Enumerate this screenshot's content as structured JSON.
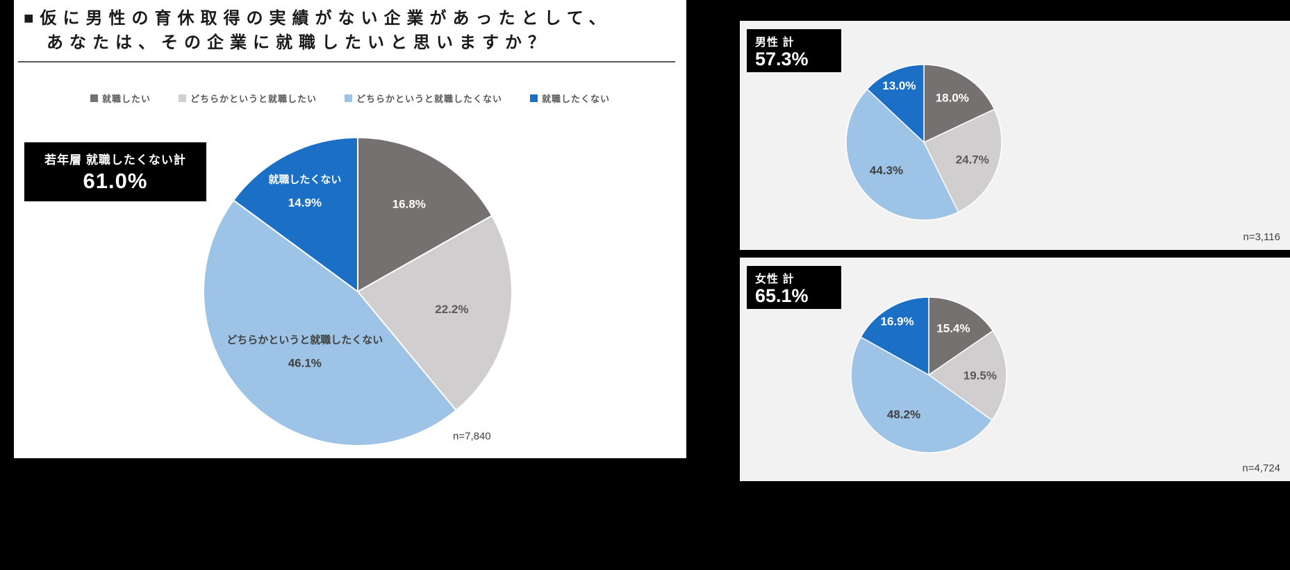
{
  "palette": {
    "background": "#000000",
    "main_panel_bg": "#ffffff",
    "side_panel_bg": "#f2f2f2",
    "title_text": "#1a1a1a",
    "legend_text": "#595959",
    "n_label_text": "#404040",
    "callout_bg": "#000000",
    "callout_text": "#ffffff",
    "segments": [
      "#767171",
      "#d0cece",
      "#9dc3e6",
      "#1b6fc5"
    ]
  },
  "legend_items": [
    "就職したい",
    "どちらかというと就職したい",
    "どちらかというと就職したくない",
    "就職したくない"
  ],
  "main_panel": {
    "title_line1": "■仮に男性の育休取得の実績がない企業があったとして、",
    "title_line2": "あなたは、その企業に就職したいと思いますか？",
    "callout": {
      "label": "若年層 就職したくない計",
      "value": "61.0%"
    },
    "n_label": "n=7,840"
  },
  "male_panel": {
    "callout": {
      "label": "男性 計",
      "value": "57.3%"
    },
    "n_label": "n=3,116"
  },
  "female_panel": {
    "callout": {
      "label": "女性 計",
      "value": "65.1%"
    },
    "n_label": "n=4,724"
  },
  "chart_data": [
    {
      "type": "pie",
      "group": "若年層",
      "title": "仮に男性の育休取得の実績がない企業があったとして、あなたは、その企業に就職したいと思いますか？",
      "categories": [
        "就職したい",
        "どちらかというと就職したい",
        "どちらかというと就職したくない",
        "就職したくない"
      ],
      "values": [
        16.8,
        22.2,
        46.1,
        14.9
      ],
      "value_labels": [
        "16.8%",
        "22.2%",
        "46.1%",
        "14.9%"
      ],
      "slice_name_labels": [
        "",
        "",
        "どちらかというと就職したくない",
        "就職したくない"
      ],
      "colors": [
        "#767171",
        "#d0cece",
        "#9dc3e6",
        "#1b6fc5"
      ],
      "label_colors": [
        "#ffffff",
        "#595959",
        "#404040",
        "#ffffff"
      ],
      "negative_total": "61.0%",
      "n": "n=7,840",
      "legend_position": "top"
    },
    {
      "type": "pie",
      "group": "男性",
      "categories": [
        "就職したい",
        "どちらかというと就職したい",
        "どちらかというと就職したくない",
        "就職したくない"
      ],
      "values": [
        18.0,
        24.7,
        44.3,
        13.0
      ],
      "value_labels": [
        "18.0%",
        "24.7%",
        "44.3%",
        "13.0%"
      ],
      "slice_name_labels": [
        "",
        "",
        "",
        ""
      ],
      "colors": [
        "#767171",
        "#d0cece",
        "#9dc3e6",
        "#1b6fc5"
      ],
      "label_colors": [
        "#ffffff",
        "#595959",
        "#404040",
        "#ffffff"
      ],
      "negative_total": "57.3%",
      "n": "n=3,116",
      "legend_position": "none"
    },
    {
      "type": "pie",
      "group": "女性",
      "categories": [
        "就職したい",
        "どちらかというと就職したい",
        "どちらかというと就職したくない",
        "就職したくない"
      ],
      "values": [
        15.4,
        19.5,
        48.2,
        16.9
      ],
      "value_labels": [
        "15.4%",
        "19.5%",
        "48.2%",
        "16.9%"
      ],
      "slice_name_labels": [
        "",
        "",
        "",
        ""
      ],
      "colors": [
        "#767171",
        "#d0cece",
        "#9dc3e6",
        "#1b6fc5"
      ],
      "label_colors": [
        "#ffffff",
        "#595959",
        "#404040",
        "#ffffff"
      ],
      "negative_total": "65.1%",
      "n": "n=4,724",
      "legend_position": "none"
    }
  ]
}
